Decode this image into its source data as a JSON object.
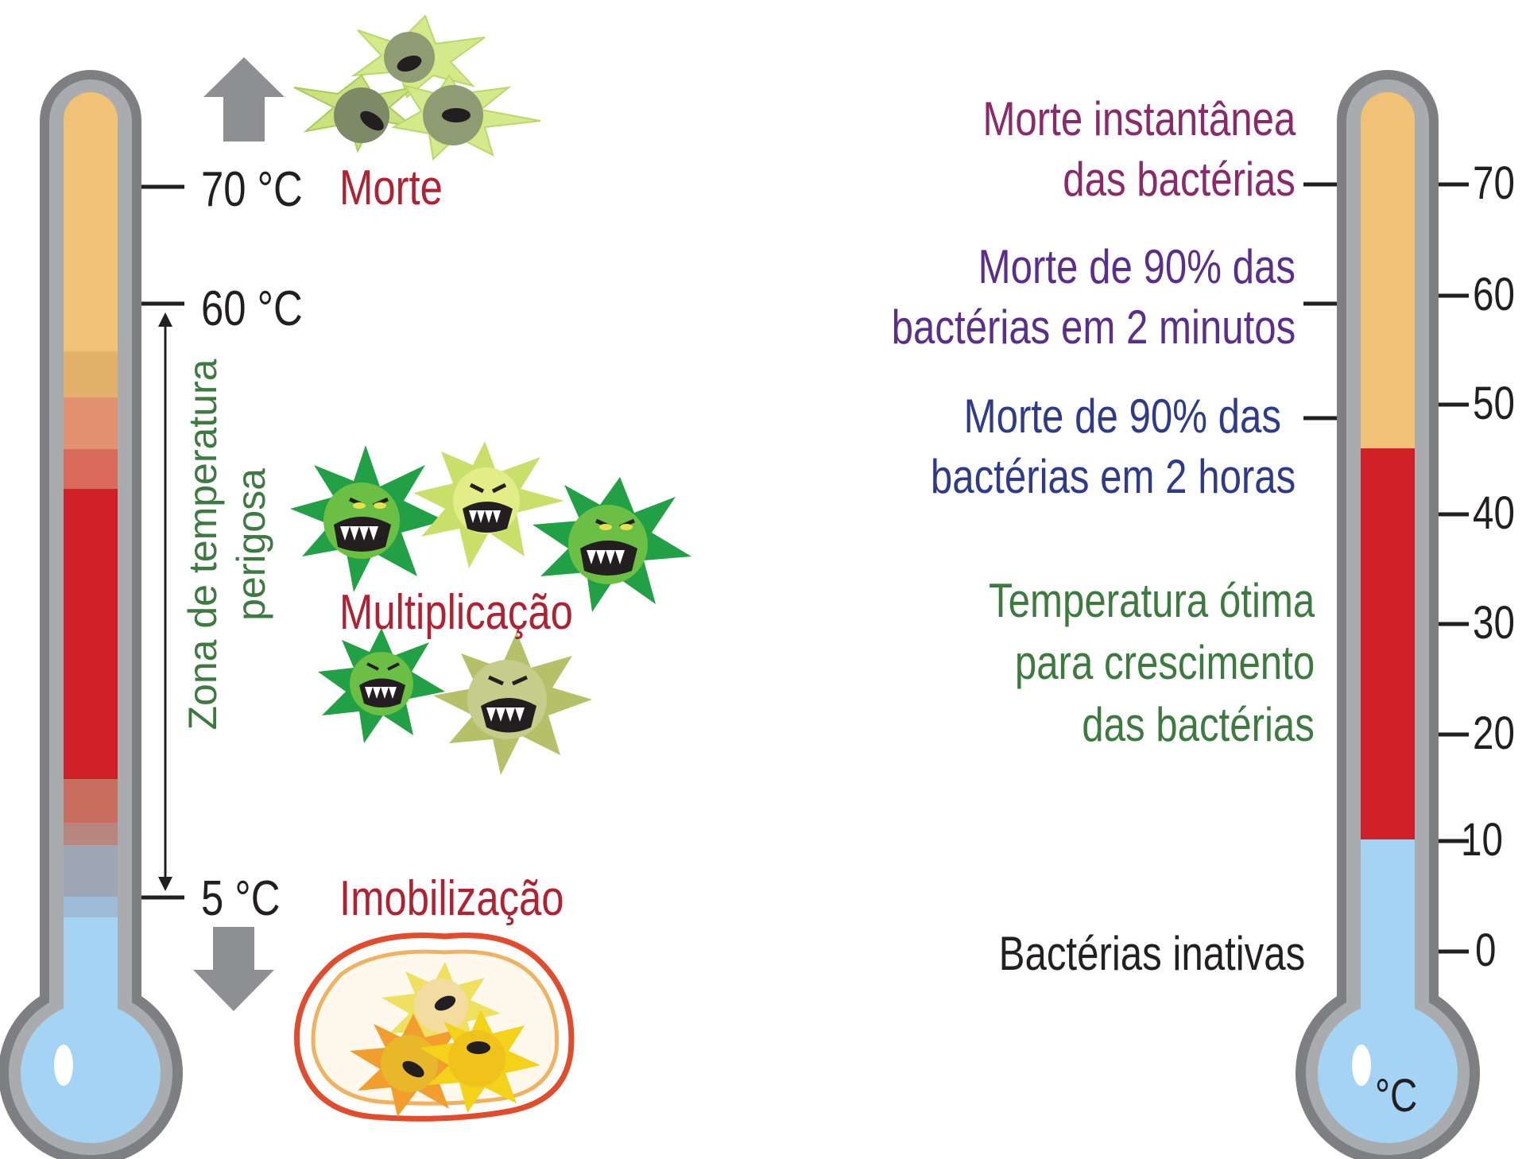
{
  "left": {
    "labels": {
      "t70": "70 °C",
      "t60": "60 °C",
      "t5": "5 °C",
      "morte": "Morte",
      "multiplicacao": "Multiplicação",
      "imobilizacao": "Imobilização",
      "zona_line1": "Zona de temperatura",
      "zona_line2": "perigosa"
    }
  },
  "right": {
    "unit": "°C",
    "ticks": [
      "70",
      "60",
      "50",
      "40",
      "30",
      "20",
      "10",
      "0"
    ],
    "annotations": {
      "instant_1": "Morte instantânea",
      "instant_2": "das bactérias",
      "min_1": "Morte de 90% das",
      "min_2": "bactérias em 2 minutos",
      "hours_1": "Morte de 90% das",
      "hours_2": "bactérias em 2 horas",
      "optimal_1": "Temperatura ótima",
      "optimal_2": "para crescimento",
      "optimal_3": "das bactérias",
      "inactive": "Bactérias inativas"
    }
  },
  "colors": {
    "hot": "#f0c275",
    "danger": "#cf2027",
    "cold": "#a5d3f3",
    "frame": "#7d7f82"
  }
}
